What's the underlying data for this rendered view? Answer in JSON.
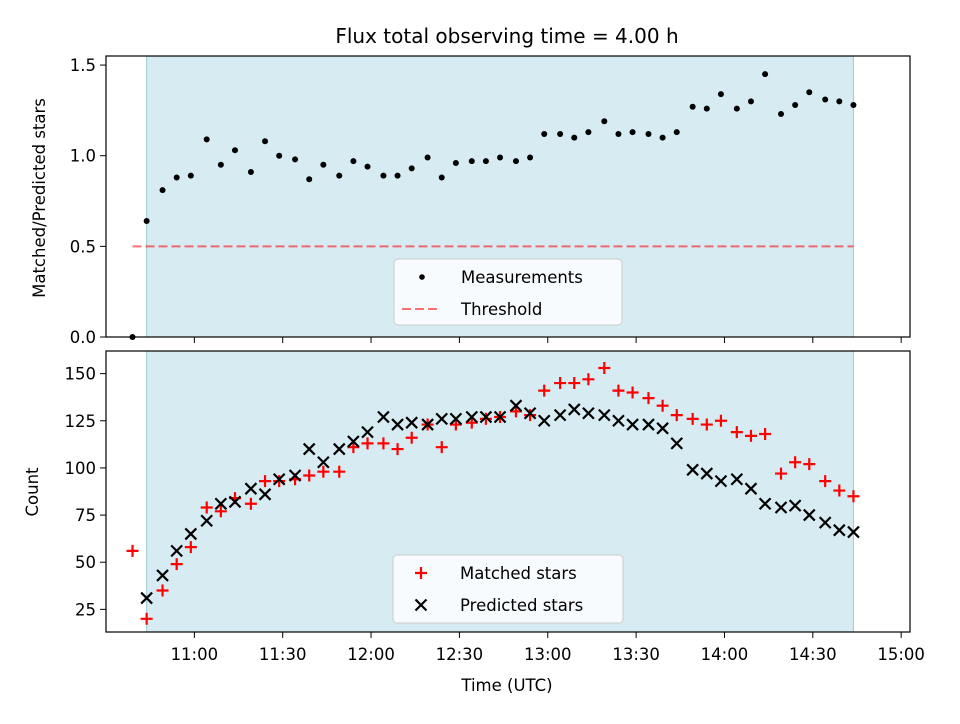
{
  "chart_data": [
    {
      "type": "scatter",
      "title": "Flux total observing time = 4.00 h",
      "xlabel": "",
      "ylabel": "Matched/Predicted stars",
      "ylim": [
        0,
        1.55
      ],
      "yticks": [
        0.0,
        0.5,
        1.0,
        1.5
      ],
      "ytick_labels": [
        "0.0",
        "0.5",
        "1.0",
        "1.5"
      ],
      "x_unit": "hours (UTC)",
      "xlim": [
        10.5,
        15.05
      ],
      "shaded_span": [
        10.73,
        14.73
      ],
      "threshold": 0.5,
      "threshold_span": [
        10.65,
        14.73
      ],
      "legend": [
        "Measurements",
        "Threshold"
      ],
      "legend_position": "lower center",
      "series": [
        {
          "name": "Measurements",
          "x": [
            10.65,
            10.73,
            10.82,
            10.9,
            10.98,
            11.07,
            11.15,
            11.23,
            11.32,
            11.4,
            11.48,
            11.57,
            11.65,
            11.73,
            11.82,
            11.9,
            11.98,
            12.07,
            12.15,
            12.23,
            12.32,
            12.4,
            12.48,
            12.57,
            12.65,
            12.73,
            12.82,
            12.9,
            12.98,
            13.07,
            13.15,
            13.23,
            13.32,
            13.4,
            13.48,
            13.57,
            13.65,
            13.73,
            13.82,
            13.9,
            13.98,
            14.07,
            14.15,
            14.23,
            14.32,
            14.4,
            14.48,
            14.57,
            14.65,
            14.73
          ],
          "y": [
            0.0,
            0.64,
            0.81,
            0.88,
            0.89,
            1.09,
            0.95,
            1.03,
            0.91,
            1.08,
            1.0,
            0.98,
            0.87,
            0.95,
            0.89,
            0.97,
            0.94,
            0.89,
            0.89,
            0.93,
            0.99,
            0.88,
            0.96,
            0.97,
            0.97,
            0.99,
            0.97,
            0.99,
            1.12,
            1.12,
            1.1,
            1.13,
            1.19,
            1.12,
            1.13,
            1.12,
            1.1,
            1.13,
            1.27,
            1.26,
            1.34,
            1.26,
            1.3,
            1.45,
            1.23,
            1.28,
            1.35,
            1.31,
            1.3,
            1.28
          ]
        }
      ]
    },
    {
      "type": "scatter",
      "title": "",
      "xlabel": "Time (UTC)",
      "ylabel": "Count",
      "ylim": [
        13,
        162
      ],
      "yticks": [
        25,
        50,
        75,
        100,
        125,
        150
      ],
      "ytick_labels": [
        "25",
        "50",
        "75",
        "100",
        "125",
        "150"
      ],
      "x_unit": "hours (UTC)",
      "xlim": [
        10.5,
        15.05
      ],
      "xticks": [
        11.0,
        11.5,
        12.0,
        12.5,
        13.0,
        13.5,
        14.0,
        14.5,
        15.0
      ],
      "xtick_labels": [
        "11:00",
        "11:30",
        "12:00",
        "12:30",
        "13:00",
        "13:30",
        "14:00",
        "14:30",
        "15:00"
      ],
      "shaded_span": [
        10.73,
        14.73
      ],
      "legend": [
        "Matched stars",
        "Predicted stars"
      ],
      "legend_position": "lower center",
      "series": [
        {
          "name": "Matched stars",
          "marker": "+",
          "color": "#ff0000",
          "x": [
            10.65,
            10.73,
            10.82,
            10.9,
            10.98,
            11.07,
            11.15,
            11.23,
            11.32,
            11.4,
            11.48,
            11.57,
            11.65,
            11.73,
            11.82,
            11.9,
            11.98,
            12.07,
            12.15,
            12.23,
            12.32,
            12.4,
            12.48,
            12.57,
            12.65,
            12.73,
            12.82,
            12.9,
            12.98,
            13.07,
            13.15,
            13.23,
            13.32,
            13.4,
            13.48,
            13.57,
            13.65,
            13.73,
            13.82,
            13.9,
            13.98,
            14.07,
            14.15,
            14.23,
            14.32,
            14.4,
            14.48,
            14.57,
            14.65,
            14.73
          ],
          "y": [
            56,
            20,
            35,
            49,
            58,
            79,
            77,
            84,
            81,
            93,
            93,
            94,
            96,
            98,
            98,
            111,
            113,
            113,
            110,
            116,
            123,
            111,
            123,
            124,
            126,
            127,
            130,
            128,
            141,
            145,
            145,
            147,
            153,
            141,
            140,
            137,
            133,
            128,
            126,
            123,
            125,
            119,
            117,
            118,
            97,
            103,
            102,
            93,
            88,
            85
          ]
        },
        {
          "name": "Predicted stars",
          "marker": "x",
          "color": "#000000",
          "x": [
            10.73,
            10.82,
            10.9,
            10.98,
            11.07,
            11.15,
            11.23,
            11.32,
            11.4,
            11.48,
            11.57,
            11.65,
            11.73,
            11.82,
            11.9,
            11.98,
            12.07,
            12.15,
            12.23,
            12.32,
            12.4,
            12.48,
            12.57,
            12.65,
            12.73,
            12.82,
            12.9,
            12.98,
            13.07,
            13.15,
            13.23,
            13.32,
            13.4,
            13.48,
            13.57,
            13.65,
            13.73,
            13.82,
            13.9,
            13.98,
            14.07,
            14.15,
            14.23,
            14.32,
            14.4,
            14.48,
            14.57,
            14.65,
            14.73
          ],
          "y": [
            31,
            43,
            56,
            65,
            72,
            81,
            82,
            89,
            86,
            94,
            96,
            110,
            103,
            110,
            114,
            119,
            127,
            123,
            124,
            123,
            126,
            126,
            127,
            127,
            127,
            133,
            129,
            125,
            128,
            131,
            129,
            128,
            125,
            123,
            123,
            121,
            113,
            99,
            97,
            93,
            94,
            89,
            81,
            79,
            80,
            75,
            71,
            67,
            66
          ]
        }
      ]
    }
  ]
}
